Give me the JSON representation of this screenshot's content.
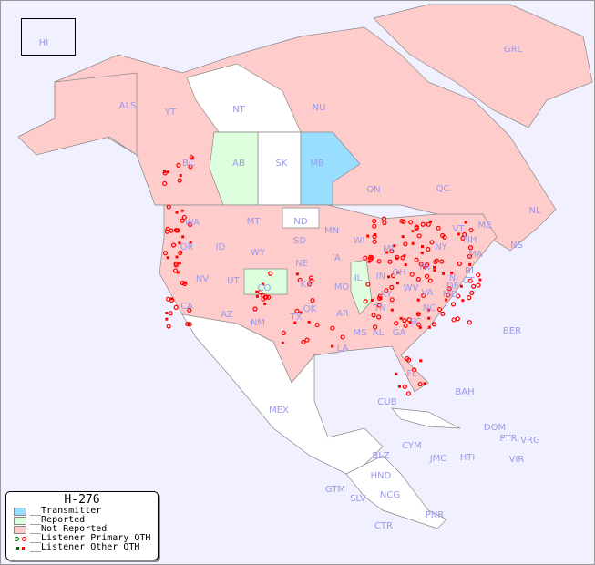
{
  "legend": {
    "title": "H-276",
    "items": [
      {
        "label": "__Transmitter",
        "color": "#99ddff"
      },
      {
        "label": "__Reported",
        "color": "#ddffdd"
      },
      {
        "label": "__Not Reported",
        "color": "#ffcccc"
      },
      {
        "label": "__Listener Primary QTH",
        "colors": [
          "#006600",
          "#ff0000"
        ]
      },
      {
        "label": "__Listener Other QTH",
        "colors": [
          "#006600",
          "#ff0000"
        ]
      }
    ]
  },
  "colors": {
    "ocean": "#f0f0ff",
    "transmitter": "#99ddff",
    "reported": "#ddffdd",
    "not_reported": "#ffcccc",
    "no_data": "#ffffff",
    "label": "#9999ee",
    "marker": "#ff0000"
  },
  "regions": {
    "transmitter": [
      "MB"
    ],
    "reported": [
      "AB",
      "CO",
      "IL"
    ],
    "not_reported": [
      "ALS",
      "YT",
      "NU",
      "GRL",
      "BC",
      "ON",
      "QC",
      "NL",
      "NS",
      "WA",
      "MT",
      "MN",
      "OR",
      "ID",
      "WY",
      "SD",
      "WI",
      "NV",
      "UT",
      "NE",
      "IA",
      "IN",
      "OH",
      "PA",
      "NY",
      "VT",
      "NH",
      "ME",
      "MA",
      "CT",
      "RI",
      "NJ",
      "DE",
      "MD",
      "VA",
      "WV",
      "KY",
      "MO",
      "KS",
      "OK",
      "AR",
      "TN",
      "NC",
      "SC",
      "GA",
      "AL",
      "MS",
      "LA",
      "TX",
      "NM",
      "AZ",
      "CA",
      "FL",
      "MI",
      "HI"
    ],
    "no_data": [
      "NT",
      "SK",
      "ND",
      "MEX",
      "CUB",
      "BAH",
      "BER",
      "DOM",
      "PTR",
      "VRG",
      "CYM",
      "JMC",
      "HTI",
      "VIR",
      "BLZ",
      "HND",
      "GTM",
      "SLV",
      "NCG",
      "CTR",
      "PNR"
    ]
  },
  "labels": [
    "HI",
    "ALS",
    "YT",
    "NT",
    "NU",
    "GRL",
    "BC",
    "AB",
    "SK",
    "MB",
    "ON",
    "QC",
    "NL",
    "NS",
    "WA",
    "MT",
    "ND",
    "MN",
    "OR",
    "ID",
    "WY",
    "SD",
    "WI",
    "MI",
    "NV",
    "UT",
    "CO",
    "NE",
    "IA",
    "IL",
    "IN",
    "OH",
    "PA",
    "NY",
    "VT",
    "NH",
    "ME",
    "MA",
    "RI",
    "CT",
    "NJ",
    "DE",
    "MD",
    "VA",
    "WV",
    "KY",
    "MO",
    "KS",
    "OK",
    "AR",
    "TN",
    "NC",
    "SC",
    "GA",
    "AL",
    "MS",
    "LA",
    "TX",
    "NM",
    "AZ",
    "CA",
    "FL",
    "BER",
    "BAH",
    "CUB",
    "MEX",
    "DOM",
    "PTR",
    "VRG",
    "CYM",
    "JMC",
    "HTI",
    "VIR",
    "BLZ",
    "HND",
    "GTM",
    "SLV",
    "NCG",
    "CTR",
    "PNR"
  ]
}
